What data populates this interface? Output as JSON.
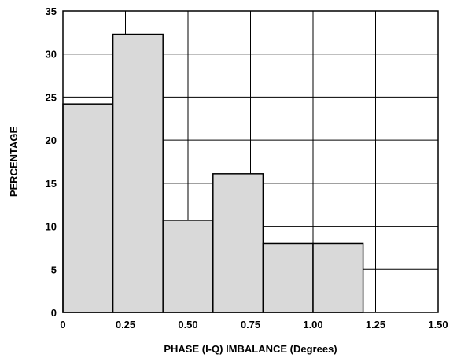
{
  "chart_data": {
    "type": "bar",
    "histogram": true,
    "bins": [
      {
        "x0": 0.0,
        "x1": 0.2,
        "value": 24.2
      },
      {
        "x0": 0.2,
        "x1": 0.4,
        "value": 32.3
      },
      {
        "x0": 0.4,
        "x1": 0.6,
        "value": 10.7
      },
      {
        "x0": 0.6,
        "x1": 0.8,
        "value": 16.1
      },
      {
        "x0": 0.8,
        "x1": 1.0,
        "value": 8.0
      },
      {
        "x0": 1.0,
        "x1": 1.2,
        "value": 8.0
      }
    ],
    "xlabel": "PHASE (I-Q) IMBALANCE (Degrees)",
    "ylabel": "PERCENTAGE",
    "xlim": [
      0,
      1.5
    ],
    "ylim": [
      0,
      35
    ],
    "xticks": [
      0,
      0.25,
      0.5,
      0.75,
      1.0,
      1.25,
      1.5
    ],
    "xtick_labels": [
      "0",
      "0.25",
      "0.50",
      "0.75",
      "1.00",
      "1.25",
      "1.50"
    ],
    "yticks": [
      0,
      5,
      10,
      15,
      20,
      25,
      30,
      35
    ],
    "ytick_labels": [
      "0",
      "5",
      "10",
      "15",
      "20",
      "25",
      "30",
      "35"
    ],
    "grid": true,
    "colors": {
      "bar_fill": "#d9d9d9",
      "bar_edge": "#000000",
      "grid": "#000000"
    }
  }
}
